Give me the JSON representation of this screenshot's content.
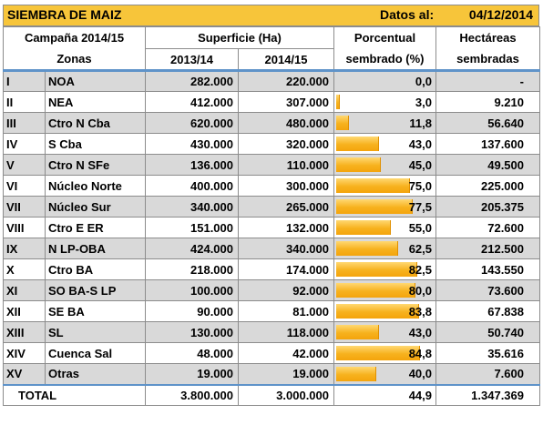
{
  "header": {
    "title": "SIEMBRA DE MAIZ",
    "date_label": "Datos al:",
    "date_value": "04/12/2014"
  },
  "columns": {
    "campaign": "Campaña 2014/15",
    "zones": "Zonas",
    "surface": "Superficie (Ha)",
    "year1": "2013/14",
    "year2": "2014/15",
    "pct_line1": "Porcentual",
    "pct_line2": "sembrado (%)",
    "hect_line1": "Hectáreas",
    "hect_line2": "sembradas"
  },
  "rows": [
    {
      "num": "I",
      "zone": "NOA",
      "y1": "282.000",
      "y2": "220.000",
      "pct": "0,0",
      "pct_value": 0.0,
      "hect": "-"
    },
    {
      "num": "II",
      "zone": "NEA",
      "y1": "412.000",
      "y2": "307.000",
      "pct": "3,0",
      "pct_value": 3.0,
      "hect": "9.210"
    },
    {
      "num": "III",
      "zone": "Ctro N Cba",
      "y1": "620.000",
      "y2": "480.000",
      "pct": "11,8",
      "pct_value": 11.8,
      "hect": "56.640"
    },
    {
      "num": "IV",
      "zone": "S Cba",
      "y1": "430.000",
      "y2": "320.000",
      "pct": "43,0",
      "pct_value": 43.0,
      "hect": "137.600"
    },
    {
      "num": "V",
      "zone": "Ctro N SFe",
      "y1": "136.000",
      "y2": "110.000",
      "pct": "45,0",
      "pct_value": 45.0,
      "hect": "49.500"
    },
    {
      "num": "VI",
      "zone": "Núcleo Norte",
      "y1": "400.000",
      "y2": "300.000",
      "pct": "75,0",
      "pct_value": 75.0,
      "hect": "225.000"
    },
    {
      "num": "VII",
      "zone": "Núcleo Sur",
      "y1": "340.000",
      "y2": "265.000",
      "pct": "77,5",
      "pct_value": 77.5,
      "hect": "205.375"
    },
    {
      "num": "VIII",
      "zone": "Ctro E ER",
      "y1": "151.000",
      "y2": "132.000",
      "pct": "55,0",
      "pct_value": 55.0,
      "hect": "72.600"
    },
    {
      "num": "IX",
      "zone": "N LP-OBA",
      "y1": "424.000",
      "y2": "340.000",
      "pct": "62,5",
      "pct_value": 62.5,
      "hect": "212.500"
    },
    {
      "num": "X",
      "zone": "Ctro BA",
      "y1": "218.000",
      "y2": "174.000",
      "pct": "82,5",
      "pct_value": 82.5,
      "hect": "143.550"
    },
    {
      "num": "XI",
      "zone": "SO BA-S LP",
      "y1": "100.000",
      "y2": "92.000",
      "pct": "80,0",
      "pct_value": 80.0,
      "hect": "73.600"
    },
    {
      "num": "XII",
      "zone": "SE BA",
      "y1": "90.000",
      "y2": "81.000",
      "pct": "83,8",
      "pct_value": 83.8,
      "hect": "67.838"
    },
    {
      "num": "XIII",
      "zone": "SL",
      "y1": "130.000",
      "y2": "118.000",
      "pct": "43,0",
      "pct_value": 43.0,
      "hect": "50.740"
    },
    {
      "num": "XIV",
      "zone": "Cuenca Sal",
      "y1": "48.000",
      "y2": "42.000",
      "pct": "84,8",
      "pct_value": 84.8,
      "hect": "35.616"
    },
    {
      "num": "XV",
      "zone": "Otras",
      "y1": "19.000",
      "y2": "19.000",
      "pct": "40,0",
      "pct_value": 40.0,
      "hect": "7.600"
    }
  ],
  "total": {
    "label": "TOTAL",
    "y1": "3.800.000",
    "y2": "3.000.000",
    "pct": "44,9",
    "pct_value": 44.9,
    "hect": "1.347.369"
  },
  "colors": {
    "banner": "#f7c53a",
    "bar": "#f7b21e",
    "row_alt": "#d9d9d9",
    "accent_line": "#5f93c9"
  }
}
